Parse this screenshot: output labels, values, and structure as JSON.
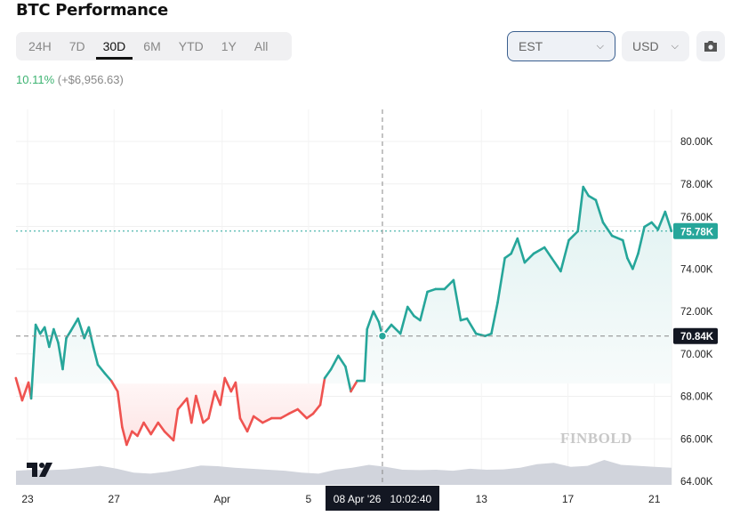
{
  "header": {
    "title": "BTC Performance"
  },
  "ranges": [
    {
      "label": "24H",
      "active": false
    },
    {
      "label": "7D",
      "active": false
    },
    {
      "label": "30D",
      "active": true
    },
    {
      "label": "6M",
      "active": false
    },
    {
      "label": "YTD",
      "active": false
    },
    {
      "label": "1Y",
      "active": false
    },
    {
      "label": "All",
      "active": false
    }
  ],
  "performance": {
    "percent": "10.11%",
    "change": "(+$6,956.63)"
  },
  "controls": {
    "timezone": "EST",
    "currency": "USD",
    "camera_icon": "camera-icon"
  },
  "colors": {
    "up": "#26a69a",
    "down": "#ef5350",
    "up_fill": "#e0f2f1",
    "down_fill": "#fde3e3",
    "volume": "#d1d4dc",
    "crosshair_label_bg": "#131722"
  },
  "watermark": "FINBOLD",
  "logo": "TV",
  "chart_data": {
    "type": "line",
    "title": "BTC Performance",
    "ylim": [
      64000,
      81000
    ],
    "y_ticks": [
      "80.00K",
      "78.00K",
      "76.00K",
      "74.00K",
      "72.00K",
      "70.00K",
      "68.00K",
      "66.00K",
      "64.00K"
    ],
    "y_tick_values": [
      80000,
      78000,
      76000,
      74000,
      72000,
      70000,
      68000,
      66000,
      64000
    ],
    "x_ticks": [
      {
        "label": "23",
        "date": "2026-03-23T00:00"
      },
      {
        "label": "27",
        "date": "2026-03-27T00:00"
      },
      {
        "label": "Apr",
        "date": "2026-04-01T00:00"
      },
      {
        "label": "5",
        "date": "2026-04-05T00:00"
      },
      {
        "label": "13",
        "date": "2026-04-13T00:00"
      },
      {
        "label": "17",
        "date": "2026-04-17T00:00"
      },
      {
        "label": "21",
        "date": "2026-04-21T00:00"
      }
    ],
    "baseline": 68600,
    "last_price": {
      "label": "75.78K",
      "value": 75780
    },
    "crosshair": {
      "label": "08 Apr '26   10:02:40",
      "date": "2026-04-08T10:02",
      "value": 70840,
      "value_label": "70.84K"
    },
    "grid": true,
    "points": [
      [
        "2026-03-22T11:00",
        68860
      ],
      [
        "2026-03-22T18:00",
        67810
      ],
      [
        "2026-03-23T01:00",
        68650
      ],
      [
        "2026-03-23T04:00",
        67900
      ],
      [
        "2026-03-23T09:00",
        71370
      ],
      [
        "2026-03-23T14:00",
        70950
      ],
      [
        "2026-03-23T19:00",
        71250
      ],
      [
        "2026-03-24T00:00",
        70330
      ],
      [
        "2026-03-24T05:00",
        71160
      ],
      [
        "2026-03-24T10:00",
        70530
      ],
      [
        "2026-03-24T15:00",
        69280
      ],
      [
        "2026-03-24T19:00",
        70740
      ],
      [
        "2026-03-25T00:00",
        71080
      ],
      [
        "2026-03-25T08:00",
        71660
      ],
      [
        "2026-03-25T15:00",
        70740
      ],
      [
        "2026-03-25T20:00",
        71250
      ],
      [
        "2026-03-26T01:00",
        70330
      ],
      [
        "2026-03-26T06:00",
        69490
      ],
      [
        "2026-03-26T14:00",
        69070
      ],
      [
        "2026-03-26T21:00",
        68730
      ],
      [
        "2026-03-27T04:00",
        68230
      ],
      [
        "2026-03-27T09:00",
        66560
      ],
      [
        "2026-03-27T14:00",
        65720
      ],
      [
        "2026-03-27T20:00",
        66350
      ],
      [
        "2026-03-28T02:00",
        66140
      ],
      [
        "2026-03-28T09:00",
        66760
      ],
      [
        "2026-03-28T17:00",
        66220
      ],
      [
        "2026-03-29T01:00",
        66760
      ],
      [
        "2026-03-29T08:00",
        66350
      ],
      [
        "2026-03-29T18:00",
        65930
      ],
      [
        "2026-03-29T23:00",
        67390
      ],
      [
        "2026-03-30T09:00",
        67900
      ],
      [
        "2026-03-30T14:00",
        66760
      ],
      [
        "2026-03-30T19:00",
        68020
      ],
      [
        "2026-03-31T03:00",
        66760
      ],
      [
        "2026-03-31T09:00",
        66970
      ],
      [
        "2026-03-31T16:00",
        68230
      ],
      [
        "2026-03-31T22:00",
        67600
      ],
      [
        "2026-04-01T03:00",
        68860
      ],
      [
        "2026-04-01T10:00",
        68230
      ],
      [
        "2026-04-01T15:00",
        68650
      ],
      [
        "2026-04-01T20:00",
        66970
      ],
      [
        "2026-04-02T04:00",
        66350
      ],
      [
        "2026-04-02T11:00",
        67060
      ],
      [
        "2026-04-02T21:00",
        66760
      ],
      [
        "2026-04-03T07:00",
        66970
      ],
      [
        "2026-04-03T17:00",
        66970
      ],
      [
        "2026-04-04T02:00",
        67180
      ],
      [
        "2026-04-04T12:00",
        67390
      ],
      [
        "2026-04-04T22:00",
        66970
      ],
      [
        "2026-04-05T05:00",
        67180
      ],
      [
        "2026-04-05T13:00",
        67600
      ],
      [
        "2026-04-05T18:00",
        68860
      ],
      [
        "2026-04-06T01:00",
        69280
      ],
      [
        "2026-04-06T09:00",
        69910
      ],
      [
        "2026-04-06T17:00",
        69400
      ],
      [
        "2026-04-06T23:00",
        68230
      ],
      [
        "2026-04-07T06:00",
        68730
      ],
      [
        "2026-04-07T14:00",
        68730
      ],
      [
        "2026-04-07T17:00",
        71160
      ],
      [
        "2026-04-08T00:00",
        72000
      ],
      [
        "2026-04-08T06:00",
        71500
      ],
      [
        "2026-04-08T10:00",
        70840
      ],
      [
        "2026-04-08T20:00",
        71370
      ],
      [
        "2026-04-09T06:00",
        70950
      ],
      [
        "2026-04-09T14:00",
        72210
      ],
      [
        "2026-04-09T21:00",
        71790
      ],
      [
        "2026-04-10T04:00",
        71580
      ],
      [
        "2026-04-10T12:00",
        72920
      ],
      [
        "2026-04-10T21:00",
        73050
      ],
      [
        "2026-04-11T07:00",
        73050
      ],
      [
        "2026-04-11T17:00",
        73470
      ],
      [
        "2026-04-12T01:00",
        71580
      ],
      [
        "2026-04-12T08:00",
        71660
      ],
      [
        "2026-04-12T18:00",
        70950
      ],
      [
        "2026-04-13T04:00",
        70840
      ],
      [
        "2026-04-13T11:00",
        70950
      ],
      [
        "2026-04-13T18:00",
        72420
      ],
      [
        "2026-04-14T02:00",
        74510
      ],
      [
        "2026-04-14T09:00",
        74720
      ],
      [
        "2026-04-14T16:00",
        75430
      ],
      [
        "2026-04-15T00:00",
        74300
      ],
      [
        "2026-04-15T10:00",
        74720
      ],
      [
        "2026-04-15T22:00",
        75010
      ],
      [
        "2026-04-16T06:00",
        74510
      ],
      [
        "2026-04-16T16:00",
        73890
      ],
      [
        "2026-04-17T01:00",
        75350
      ],
      [
        "2026-04-17T11:00",
        75770
      ],
      [
        "2026-04-17T17:00",
        77860
      ],
      [
        "2026-04-17T23:00",
        77440
      ],
      [
        "2026-04-18T07:00",
        77240
      ],
      [
        "2026-04-18T15:00",
        76190
      ],
      [
        "2026-04-19T01:00",
        75560
      ],
      [
        "2026-04-19T13:00",
        75350
      ],
      [
        "2026-04-19T18:00",
        74510
      ],
      [
        "2026-04-20T00:00",
        74000
      ],
      [
        "2026-04-20T06:00",
        74720
      ],
      [
        "2026-04-20T13:00",
        75980
      ],
      [
        "2026-04-20T21:00",
        76190
      ],
      [
        "2026-04-21T04:00",
        75850
      ],
      [
        "2026-04-21T12:00",
        76690
      ],
      [
        "2026-04-21T19:00",
        75780
      ]
    ],
    "volume_relative": [
      0.45,
      0.5,
      0.48,
      0.52,
      0.6,
      0.7,
      0.55,
      0.35,
      0.3,
      0.4,
      0.55,
      0.72,
      0.68,
      0.6,
      0.55,
      0.5,
      0.45,
      0.35,
      0.3,
      0.5,
      0.6,
      0.75,
      0.65,
      0.5,
      0.48,
      0.5,
      0.45,
      0.55,
      0.5,
      0.52,
      0.6,
      0.78,
      0.85,
      0.65,
      0.7,
      1.0,
      0.75,
      0.7,
      0.65,
      0.6
    ]
  }
}
